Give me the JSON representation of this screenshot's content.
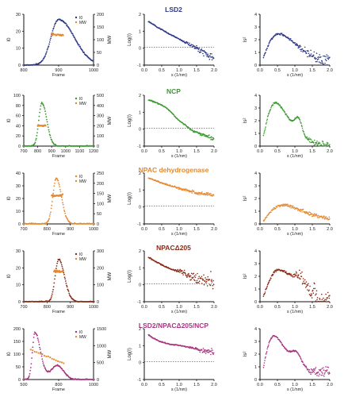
{
  "rows": [
    {
      "title": "LSD2",
      "color": "#2e3a87",
      "panel_a": {
        "x_ticks": [
          "800",
          "900",
          "1000"
        ],
        "x_label": "Frame",
        "y_ticks": [
          "0",
          "10",
          "20",
          "30"
        ],
        "y_label": "I0",
        "y2_ticks": [
          "0",
          "50",
          "100",
          "150",
          "200"
        ],
        "y2_label": "MW",
        "legend": [
          "I0",
          "MW"
        ]
      },
      "panel_b": {
        "x_ticks": [
          "0.0",
          "0.5",
          "1.0",
          "1.5",
          "2.0"
        ],
        "x_label": "s (1/nm)",
        "y_ticks": [
          "-1",
          "0",
          "1",
          "2"
        ],
        "y_label": "Log(I)"
      },
      "panel_c": {
        "x_ticks": [
          "0.0",
          "0.5",
          "1.0",
          "1.5",
          "2.0"
        ],
        "x_label": "s (1/nm)",
        "y_ticks": [
          "0",
          "1",
          "2",
          "3",
          "4"
        ],
        "y_label": "Is²"
      }
    },
    {
      "title": "NCP",
      "color": "#3a9a2e",
      "panel_a": {
        "x_ticks": [
          "700",
          "800",
          "900",
          "1000",
          "1100",
          "1200"
        ],
        "x_label": "Frame",
        "y_ticks": [
          "0",
          "20",
          "40",
          "60",
          "80",
          "100"
        ],
        "y_label": "I0",
        "y2_ticks": [
          "0",
          "100",
          "200",
          "300",
          "400",
          "500"
        ],
        "y2_label": "MW",
        "legend": [
          "I0",
          "MW"
        ]
      },
      "panel_b": {
        "x_ticks": [
          "0.0",
          "0.5",
          "1.0",
          "1.5",
          "2.0"
        ],
        "x_label": "s (1/nm)",
        "y_ticks": [
          "-1",
          "0",
          "1",
          "2"
        ],
        "y_label": "Log(I)"
      },
      "panel_c": {
        "x_ticks": [
          "0.0",
          "0.5",
          "1.0",
          "1.5",
          "2.0"
        ],
        "x_label": "s (1/nm)",
        "y_ticks": [
          "0",
          "1",
          "2",
          "3",
          "4"
        ],
        "y_label": "Is²"
      }
    },
    {
      "title": "NPAC dehydrogenase",
      "color": "#e6892e",
      "panel_a": {
        "x_ticks": [
          "700",
          "800",
          "900",
          "1000"
        ],
        "x_label": "Frame",
        "y_ticks": [
          "0",
          "10",
          "20",
          "30",
          "40"
        ],
        "y_label": "I0",
        "y2_ticks": [
          "0",
          "50",
          "100",
          "150",
          "200",
          "250"
        ],
        "y2_label": "MW",
        "legend": [
          "I0",
          "MW"
        ]
      },
      "panel_b": {
        "x_ticks": [
          "0.0",
          "0.5",
          "1.0",
          "1.5",
          "2.0"
        ],
        "x_label": "s (1/nm)",
        "y_ticks": [
          "-1",
          "0",
          "1",
          "2"
        ],
        "y_label": "Log(I)"
      },
      "panel_c": {
        "x_ticks": [
          "0.0",
          "0.5",
          "1.0",
          "1.5",
          "2.0"
        ],
        "x_label": "s (1/nm)",
        "y_ticks": [
          "0",
          "1",
          "2",
          "3",
          "4"
        ],
        "y_label": "Is²"
      }
    },
    {
      "title": "NPACΔ205",
      "color": "#8b2a16",
      "panel_a": {
        "x_ticks": [
          "700",
          "800",
          "900",
          "1000"
        ],
        "x_label": "Frame",
        "y_ticks": [
          "0",
          "10",
          "20",
          "30"
        ],
        "y_label": "I0",
        "y2_ticks": [
          "0",
          "100",
          "200",
          "300"
        ],
        "y2_label": "MW",
        "legend": [
          "I0",
          "MW"
        ]
      },
      "panel_b": {
        "x_ticks": [
          "0.0",
          "0.5",
          "1.0",
          "1.5",
          "2.0"
        ],
        "x_label": "s (1/nm)",
        "y_ticks": [
          "-1",
          "0",
          "1",
          "2"
        ],
        "y_label": "Log(I)"
      },
      "panel_c": {
        "x_ticks": [
          "0.0",
          "0.5",
          "1.0",
          "1.5",
          "2.0"
        ],
        "x_label": "s (1/nm)",
        "y_ticks": [
          "0",
          "1",
          "2",
          "3",
          "4"
        ],
        "y_label": "Is²"
      }
    },
    {
      "title": "LSD2/NPACΔ205/NCP",
      "color": "#a8357f",
      "panel_a": {
        "x_ticks": [
          "500",
          "800",
          "1000"
        ],
        "x_label": "Frame",
        "y_ticks": [
          "0",
          "50",
          "100",
          "150",
          "200"
        ],
        "y_label": "I0",
        "y2_ticks": [
          "0",
          "500",
          "1000",
          "1500"
        ],
        "y2_label": "MW",
        "legend": [
          "I0",
          "MW"
        ]
      },
      "panel_b": {
        "x_ticks": [
          "0.0",
          "0.5",
          "1.0",
          "1.5",
          "2.0"
        ],
        "x_label": "s (1/nm)",
        "y_ticks": [
          "-1",
          "0",
          "1",
          "2"
        ],
        "y_label": "Log(I)"
      },
      "panel_c": {
        "x_ticks": [
          "0.0",
          "0.5",
          "1.0",
          "1.5",
          "2.0"
        ],
        "x_label": "s (1/nm)",
        "y_ticks": [
          "0",
          "1",
          "2",
          "3",
          "4"
        ],
        "y_label": "Is²"
      }
    }
  ],
  "chart_data": [
    {
      "type": "scatter",
      "row": "LSD2",
      "panel": "elution",
      "xlim": [
        800,
        1000
      ],
      "ylim": [
        0,
        30
      ],
      "y2lim": [
        0,
        200
      ],
      "series": [
        {
          "name": "I0",
          "peak_x": 900,
          "peak_y": 27,
          "width": 35
        },
        {
          "name": "MW",
          "x": [
            880,
            910
          ],
          "value": 120
        }
      ]
    },
    {
      "type": "scatter",
      "row": "LSD2",
      "panel": "log_intensity",
      "xlim": [
        0,
        2
      ],
      "ylim": [
        -1.2,
        2.2
      ],
      "reference_line": 0,
      "series": [
        {
          "x": [
            0.2,
            0.5,
            1.0,
            1.5,
            2.0
          ],
          "y": [
            1.75,
            1.35,
            0.65,
            -0.05,
            -0.65
          ]
        }
      ]
    },
    {
      "type": "scatter",
      "row": "LSD2",
      "panel": "kratky",
      "xlim": [
        0,
        2
      ],
      "ylim": [
        0,
        4
      ],
      "series": [
        {
          "x": [
            0.2,
            0.5,
            0.6,
            1.0,
            1.5,
            2.0
          ],
          "y": [
            0.2,
            2.3,
            2.4,
            1.6,
            0.9,
            0.5
          ]
        }
      ]
    },
    {
      "type": "scatter",
      "row": "NCP",
      "panel": "elution",
      "xlim": [
        700,
        1200
      ],
      "ylim": [
        0,
        100
      ],
      "y2lim": [
        0,
        500
      ],
      "series": [
        {
          "name": "I0",
          "peak_x": 830,
          "peak_y": 85,
          "width": 30
        },
        {
          "name": "MW",
          "x": [
            800,
            860
          ],
          "value": 200
        }
      ]
    },
    {
      "type": "scatter",
      "row": "NCP",
      "panel": "log_intensity",
      "xlim": [
        0,
        2
      ],
      "ylim": [
        -1.2,
        2.2
      ],
      "reference_line": 0,
      "series": [
        {
          "x": [
            0.1,
            0.5,
            0.8,
            1.2,
            1.5,
            2.0
          ],
          "y": [
            1.9,
            1.6,
            0.9,
            0.0,
            -0.3,
            -0.45
          ]
        }
      ]
    },
    {
      "type": "scatter",
      "row": "NCP",
      "panel": "kratky",
      "xlim": [
        0,
        2
      ],
      "ylim": [
        0,
        4
      ],
      "series": [
        {
          "x": [
            0.1,
            0.4,
            0.5,
            0.9,
            1.1,
            1.4,
            2.0
          ],
          "y": [
            0.3,
            3.3,
            3.4,
            1.2,
            1.5,
            0.7,
            0.4
          ]
        }
      ]
    },
    {
      "type": "scatter",
      "row": "NPAC dehydrogenase",
      "panel": "elution",
      "xlim": [
        700,
        1000
      ],
      "ylim": [
        0,
        40
      ],
      "y2lim": [
        0,
        250
      ],
      "series": [
        {
          "name": "I0",
          "peak_x": 840,
          "peak_y": 36,
          "width": 25
        },
        {
          "name": "MW",
          "x": [
            820,
            870
          ],
          "value": 140
        }
      ]
    },
    {
      "type": "scatter",
      "row": "NPAC dehydrogenase",
      "panel": "log_intensity",
      "xlim": [
        0,
        2
      ],
      "ylim": [
        -1.2,
        2.2
      ],
      "reference_line": 0,
      "series": [
        {
          "x": [
            0.1,
            0.5,
            1.0,
            1.5,
            2.0
          ],
          "y": [
            1.95,
            1.55,
            0.95,
            0.6,
            0.4
          ]
        }
      ]
    },
    {
      "type": "scatter",
      "row": "NPAC dehydrogenase",
      "panel": "kratky",
      "xlim": [
        0,
        2
      ],
      "ylim": [
        0,
        4
      ],
      "series": [
        {
          "x": [
            0.1,
            0.5,
            0.8,
            1.0,
            1.5,
            2.0
          ],
          "y": [
            0.3,
            1.35,
            1.1,
            0.85,
            0.6,
            0.45
          ]
        }
      ]
    },
    {
      "type": "scatter",
      "row": "NPACΔ205",
      "panel": "elution",
      "xlim": [
        700,
        1000
      ],
      "ylim": [
        0,
        30
      ],
      "y2lim": [
        0,
        300
      ],
      "series": [
        {
          "name": "I0",
          "peak_x": 850,
          "peak_y": 25,
          "width": 25
        },
        {
          "name": "MW",
          "x": [
            830,
            870
          ],
          "value": 180
        }
      ]
    },
    {
      "type": "scatter",
      "row": "NPACΔ205",
      "panel": "log_intensity",
      "xlim": [
        0,
        2
      ],
      "ylim": [
        -1.2,
        2.2
      ],
      "reference_line": 0,
      "series": [
        {
          "x": [
            0.1,
            0.5,
            1.0,
            1.5,
            2.0
          ],
          "y": [
            1.8,
            1.2,
            0.1,
            -0.25,
            -0.35
          ]
        }
      ]
    },
    {
      "type": "scatter",
      "row": "NPACΔ205",
      "panel": "kratky",
      "xlim": [
        0,
        2
      ],
      "ylim": [
        0,
        4
      ],
      "series": [
        {
          "x": [
            0.1,
            0.5,
            0.6,
            1.0,
            1.5,
            2.0
          ],
          "y": [
            0.3,
            2.4,
            2.5,
            1.0,
            0.8,
            0.7
          ]
        }
      ]
    },
    {
      "type": "scatter",
      "row": "LSD2/NPACΔ205/NCP",
      "panel": "elution",
      "xlim": [
        500,
        1000
      ],
      "ylim": [
        0,
        200
      ],
      "y2lim": [
        0,
        1500
      ],
      "series": [
        {
          "name": "I0",
          "peak_x": 580,
          "peak_y": 185,
          "width": 40
        },
        {
          "name": "MW",
          "x": [
            550,
            800
          ],
          "value": 700
        }
      ]
    },
    {
      "type": "scatter",
      "row": "LSD2/NPACΔ205/NCP",
      "panel": "log_intensity",
      "xlim": [
        0,
        2
      ],
      "ylim": [
        -1.2,
        2.2
      ],
      "reference_line": 0,
      "series": [
        {
          "x": [
            0.1,
            0.5,
            1.0,
            1.5,
            2.0
          ],
          "y": [
            1.9,
            1.3,
            0.55,
            0.0,
            -0.3
          ]
        }
      ]
    },
    {
      "type": "scatter",
      "row": "LSD2/NPACΔ205/NCP",
      "panel": "kratky",
      "xlim": [
        0,
        2
      ],
      "ylim": [
        0,
        4
      ],
      "series": [
        {
          "x": [
            0.1,
            0.4,
            0.6,
            0.9,
            1.1,
            1.5,
            2.0
          ],
          "y": [
            0.3,
            3.3,
            3.0,
            1.6,
            1.8,
            1.0,
            0.7
          ]
        }
      ]
    }
  ]
}
